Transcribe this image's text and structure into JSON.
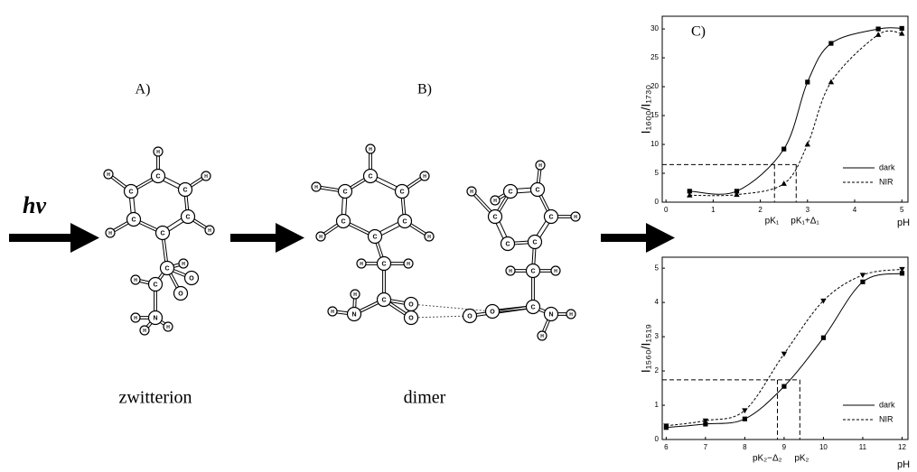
{
  "figure": {
    "panel_a": "A)",
    "panel_b": "B)",
    "hv": "hν",
    "caption_a": "zwitterion",
    "caption_b": "dimer",
    "atoms_a": [
      "C",
      "C",
      "C",
      "C",
      "C",
      "C",
      "H",
      "H",
      "H",
      "H",
      "H",
      "C",
      "C",
      "H",
      "O",
      "O",
      "H",
      "N",
      "H",
      "H",
      "H"
    ],
    "atoms_b": [
      "C",
      "C",
      "C",
      "C",
      "C",
      "C",
      "H",
      "H",
      "H",
      "H",
      "H",
      "C",
      "H",
      "H",
      "C",
      "N",
      "H",
      "O",
      "O",
      "H",
      "C",
      "C",
      "C",
      "C",
      "C",
      "C",
      "H",
      "H",
      "H",
      "H",
      "C",
      "H",
      "H",
      "C",
      "N",
      "O",
      "O",
      "H",
      "H"
    ]
  },
  "chart_data": [
    {
      "type": "line",
      "panel": "C)",
      "x_label": "pH",
      "y_label": "I₁₆₀₀/I₁₇₃₀",
      "xlim": [
        -0.08,
        5.13
      ],
      "ylim": [
        0,
        32.2
      ],
      "xticks": [
        0,
        1,
        2,
        3,
        4,
        5
      ],
      "yticks": [
        0,
        5,
        10,
        15,
        20,
        25,
        30
      ],
      "legend": "lower right",
      "series": [
        {
          "name": "dark",
          "color": "#000000",
          "dashed": false,
          "marker": "square",
          "x": [
            0.5,
            1.5,
            2.5,
            3,
            3.5,
            4.5,
            5
          ],
          "values": [
            1.9,
            1.9,
            9.2,
            20.8,
            27.5,
            30,
            30.1
          ]
        },
        {
          "name": "NIR",
          "color": "#000000",
          "dashed": true,
          "marker": "triangle",
          "x": [
            0.5,
            1.5,
            2.5,
            3,
            3.5,
            4.5,
            5
          ],
          "values": [
            1.2,
            1.3,
            3.2,
            10,
            20.8,
            29,
            29.2
          ]
        }
      ],
      "guides": {
        "y": 6.5,
        "x": [
          2.3,
          2.76
        ],
        "labels": [
          "pK₁",
          "pK₁+Δ₁"
        ]
      }
    },
    {
      "type": "line",
      "x_label": "pH",
      "y_label": "I₁₅₆₀/I₁₅₁₉",
      "xlim": [
        5.9,
        12.15
      ],
      "ylim": [
        0,
        5.32
      ],
      "xticks": [
        6,
        7,
        8,
        9,
        10,
        11,
        12
      ],
      "yticks": [
        0,
        1,
        2,
        3,
        4,
        5
      ],
      "legend": "lower right",
      "series": [
        {
          "name": "dark",
          "color": "#000000",
          "dashed": false,
          "marker": "square",
          "x": [
            6,
            7,
            8,
            9,
            10,
            11,
            12
          ],
          "values": [
            0.35,
            0.45,
            0.6,
            1.55,
            2.97,
            4.6,
            4.85
          ]
        },
        {
          "name": "NIR",
          "color": "#000000",
          "dashed": true,
          "marker": "triangle-down",
          "x": [
            6,
            7,
            8,
            9,
            10,
            11,
            12
          ],
          "values": [
            0.4,
            0.55,
            0.85,
            2.5,
            4.05,
            4.8,
            4.97
          ]
        }
      ],
      "guides": {
        "y": 1.74,
        "x": [
          8.83,
          9.4
        ],
        "labels": [
          "pK₂−Δ₂",
          "pK₂"
        ]
      }
    }
  ]
}
